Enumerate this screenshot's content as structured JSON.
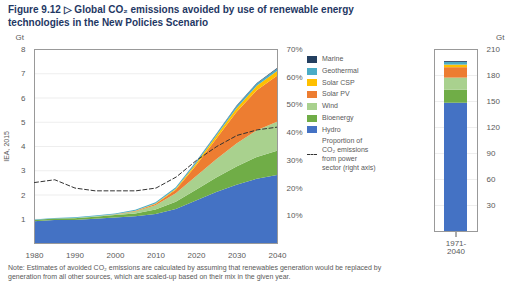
{
  "chart_data": [
    {
      "type": "area",
      "title": "Figure 9.12 ▷ Global CO₂ emissions avoided by use of renewable energy\ntechnologies in the New Policies Scenario",
      "stacked": true,
      "x": [
        1980,
        1985,
        1990,
        1995,
        2000,
        2005,
        2010,
        2015,
        2020,
        2025,
        2030,
        2035,
        2040
      ],
      "xlim": [
        1980,
        2040
      ],
      "xticks": [
        1980,
        1990,
        2000,
        2010,
        2020,
        2030,
        2040
      ],
      "ylabel": "Gt",
      "ylim": [
        0,
        8
      ],
      "yticks": [
        1,
        2,
        3,
        4,
        5,
        6,
        7,
        8
      ],
      "y2lim": [
        0,
        70
      ],
      "y2ticks": [
        {
          "value": 10,
          "label": "10%"
        },
        {
          "value": 20,
          "label": "20%"
        },
        {
          "value": 30,
          "label": "30%"
        },
        {
          "value": 40,
          "label": "40%"
        },
        {
          "value": 50,
          "label": "50%"
        },
        {
          "value": 60,
          "label": "60%"
        },
        {
          "value": 70,
          "label": "70%"
        }
      ],
      "grid": true,
      "legend": "right",
      "series": [
        {
          "name": "Hydro",
          "color": "#4472C4",
          "values": [
            0.9,
            0.95,
            0.95,
            1.0,
            1.05,
            1.1,
            1.2,
            1.4,
            1.75,
            2.1,
            2.4,
            2.65,
            2.8
          ]
        },
        {
          "name": "Bioenergy",
          "color": "#70AD47",
          "values": [
            0.05,
            0.06,
            0.07,
            0.08,
            0.1,
            0.12,
            0.18,
            0.3,
            0.45,
            0.6,
            0.75,
            0.9,
            1.0
          ]
        },
        {
          "name": "Wind",
          "color": "#A9D18E",
          "values": [
            0.0,
            0.0,
            0.01,
            0.02,
            0.03,
            0.08,
            0.18,
            0.35,
            0.55,
            0.75,
            0.95,
            1.1,
            1.2
          ]
        },
        {
          "name": "Solar PV",
          "color": "#ED7D31",
          "values": [
            0.0,
            0.0,
            0.0,
            0.0,
            0.01,
            0.02,
            0.05,
            0.15,
            0.45,
            0.85,
            1.3,
            1.65,
            1.9
          ]
        },
        {
          "name": "Solar CSP",
          "color": "#FFC000",
          "values": [
            0.0,
            0.0,
            0.0,
            0.0,
            0.0,
            0.01,
            0.02,
            0.04,
            0.08,
            0.12,
            0.16,
            0.18,
            0.19
          ]
        },
        {
          "name": "Geothermal",
          "color": "#4BACC6",
          "values": [
            0.02,
            0.02,
            0.03,
            0.03,
            0.03,
            0.04,
            0.05,
            0.06,
            0.07,
            0.08,
            0.09,
            0.1,
            0.1
          ]
        },
        {
          "name": "Marine",
          "color": "#243F60",
          "values": [
            0.0,
            0.0,
            0.0,
            0.0,
            0.0,
            0.0,
            0.0,
            0.0,
            0.01,
            0.01,
            0.02,
            0.02,
            0.03
          ]
        },
        {
          "name": "Proportion of\nCO₂ emissions\nfrom power\nsector (right axis)",
          "type": "line",
          "axis": "y2",
          "color": "#333333",
          "line_style": "dashed",
          "values": [
            22,
            23,
            20,
            19,
            19,
            19,
            20,
            24,
            30,
            35,
            39,
            41,
            42
          ]
        }
      ],
      "annotations": [
        "Note: Estimates of avoided CO₂ emissions are calculated by assuming that renewables generation would be replaced by\ngeneration from all other sources, which are scaled-up based on their mix in the given year.",
        "IEA, 2015"
      ]
    },
    {
      "type": "bar",
      "stacked": true,
      "categories": [
        "1971-\n2040"
      ],
      "ylabel": "Gt",
      "ylim": [
        0,
        210
      ],
      "yticks": [
        30,
        60,
        90,
        120,
        150,
        180,
        210
      ],
      "grid": true,
      "series": [
        {
          "name": "Hydro",
          "color": "#4472C4",
          "values": [
            148
          ]
        },
        {
          "name": "Bioenergy",
          "color": "#70AD47",
          "values": [
            15
          ]
        },
        {
          "name": "Wind",
          "color": "#A9D18E",
          "values": [
            14
          ]
        },
        {
          "name": "Solar PV",
          "color": "#ED7D31",
          "values": [
            12
          ]
        },
        {
          "name": "Solar CSP",
          "color": "#FFC000",
          "values": [
            3
          ]
        },
        {
          "name": "Geothermal",
          "color": "#4BACC6",
          "values": [
            3
          ]
        },
        {
          "name": "Marine",
          "color": "#243F60",
          "values": [
            1
          ]
        }
      ]
    }
  ]
}
